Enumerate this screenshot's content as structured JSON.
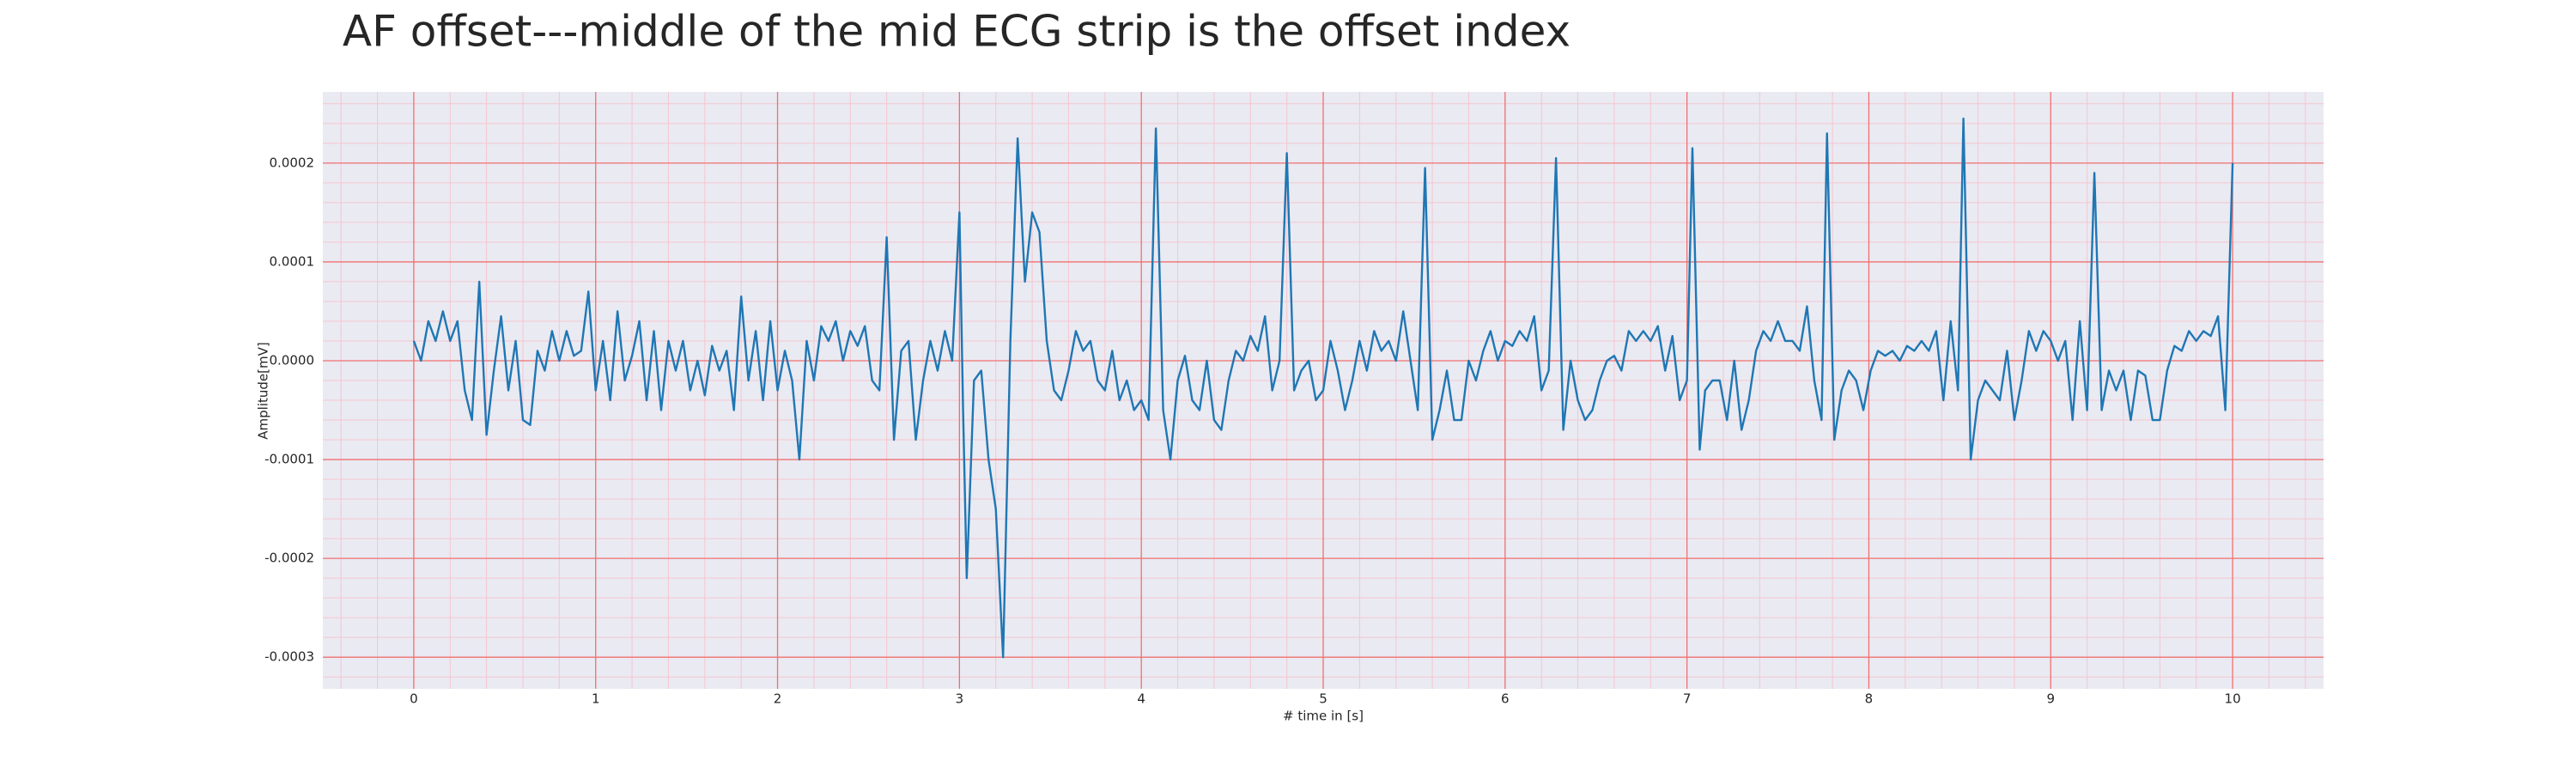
{
  "chart_data": {
    "type": "line",
    "title": "AF offset---middle of the mid ECG strip is the offset index",
    "xlabel": "# time in [s]",
    "ylabel": "Amplitude[mV]",
    "color": "#1f77b4",
    "background": "#eaeaf2",
    "grid": true,
    "grid_color": "#f07070",
    "minor_grid": true,
    "minor_grid_color": "#f5c6d0",
    "minor_grid_divisions": 5,
    "xlim": [
      -0.5,
      10.5
    ],
    "ylim": [
      -0.000332,
      0.000272
    ],
    "xticks": [
      0,
      1,
      2,
      3,
      4,
      5,
      6,
      7,
      8,
      9,
      10
    ],
    "yticks": [
      {
        "value": -0.0003,
        "label": "-0.0003"
      },
      {
        "value": -0.0002,
        "label": "-0.0002"
      },
      {
        "value": -0.0001,
        "label": "-0.0001"
      },
      {
        "value": 0,
        "label": "0.0000"
      },
      {
        "value": 0.0001,
        "label": "0.0001"
      },
      {
        "value": 0.0002,
        "label": "0.0002"
      }
    ],
    "x": [
      0.0,
      0.04,
      0.08,
      0.12,
      0.16,
      0.2,
      0.24,
      0.28,
      0.32,
      0.36,
      0.4,
      0.44,
      0.48,
      0.52,
      0.56,
      0.6,
      0.64,
      0.68,
      0.72,
      0.76,
      0.8,
      0.84,
      0.88,
      0.92,
      0.96,
      1.0,
      1.04,
      1.08,
      1.12,
      1.16,
      1.2,
      1.24,
      1.28,
      1.32,
      1.36,
      1.4,
      1.44,
      1.48,
      1.52,
      1.56,
      1.6,
      1.64,
      1.68,
      1.72,
      1.76,
      1.8,
      1.84,
      1.88,
      1.92,
      1.96,
      2.0,
      2.04,
      2.08,
      2.12,
      2.16,
      2.2,
      2.24,
      2.28,
      2.32,
      2.36,
      2.4,
      2.44,
      2.48,
      2.52,
      2.56,
      2.6,
      2.64,
      2.68,
      2.72,
      2.76,
      2.8,
      2.84,
      2.88,
      2.92,
      2.96,
      3.0,
      3.02,
      3.04,
      3.08,
      3.12,
      3.16,
      3.2,
      3.24,
      3.28,
      3.32,
      3.36,
      3.4,
      3.44,
      3.48,
      3.52,
      3.56,
      3.6,
      3.64,
      3.68,
      3.72,
      3.76,
      3.8,
      3.84,
      3.88,
      3.92,
      3.96,
      4.0,
      4.04,
      4.08,
      4.12,
      4.16,
      4.2,
      4.24,
      4.28,
      4.32,
      4.36,
      4.4,
      4.44,
      4.48,
      4.52,
      4.56,
      4.6,
      4.64,
      4.68,
      4.72,
      4.76,
      4.8,
      4.84,
      4.88,
      4.92,
      4.96,
      5.0,
      5.04,
      5.08,
      5.12,
      5.16,
      5.2,
      5.24,
      5.28,
      5.32,
      5.36,
      5.4,
      5.44,
      5.48,
      5.52,
      5.56,
      5.6,
      5.64,
      5.68,
      5.72,
      5.76,
      5.8,
      5.84,
      5.88,
      5.92,
      5.96,
      6.0,
      6.04,
      6.08,
      6.12,
      6.16,
      6.2,
      6.24,
      6.28,
      6.32,
      6.36,
      6.4,
      6.44,
      6.48,
      6.52,
      6.56,
      6.6,
      6.64,
      6.68,
      6.72,
      6.76,
      6.8,
      6.84,
      6.88,
      6.92,
      6.96,
      7.0,
      7.03,
      7.07,
      7.1,
      7.14,
      7.18,
      7.22,
      7.26,
      7.3,
      7.34,
      7.38,
      7.42,
      7.46,
      7.5,
      7.54,
      7.58,
      7.62,
      7.66,
      7.7,
      7.74,
      7.77,
      7.81,
      7.85,
      7.89,
      7.93,
      7.97,
      8.01,
      8.05,
      8.09,
      8.13,
      8.17,
      8.21,
      8.25,
      8.29,
      8.33,
      8.37,
      8.41,
      8.45,
      8.49,
      8.52,
      8.56,
      8.6,
      8.64,
      8.68,
      8.72,
      8.76,
      8.8,
      8.84,
      8.88,
      8.92,
      8.96,
      9.0,
      9.04,
      9.08,
      9.12,
      9.16,
      9.2,
      9.24,
      9.28,
      9.32,
      9.36,
      9.4,
      9.44,
      9.48,
      9.52,
      9.56,
      9.6,
      9.64,
      9.68,
      9.72,
      9.76,
      9.8,
      9.84,
      9.88,
      9.92,
      9.96,
      10.0
    ],
    "values": [
      2e-05,
      0,
      4e-05,
      2e-05,
      5e-05,
      2e-05,
      4e-05,
      -3e-05,
      -6e-05,
      8e-05,
      -7.5e-05,
      -1e-05,
      4.5e-05,
      -3e-05,
      2e-05,
      -6e-05,
      -6.5e-05,
      1e-05,
      -1e-05,
      3e-05,
      0,
      3e-05,
      5e-06,
      1e-05,
      7e-05,
      -3e-05,
      2e-05,
      -4e-05,
      5e-05,
      -2e-05,
      5e-06,
      4e-05,
      -4e-05,
      3e-05,
      -5e-05,
      2e-05,
      -1e-05,
      2e-05,
      -3e-05,
      0,
      -3.5e-05,
      1.5e-05,
      -1e-05,
      1e-05,
      -5e-05,
      6.5e-05,
      -2e-05,
      3e-05,
      -4e-05,
      4e-05,
      -3e-05,
      1e-05,
      -2e-05,
      -0.0001,
      2e-05,
      -2e-05,
      3.5e-05,
      2e-05,
      4e-05,
      0,
      3e-05,
      1.5e-05,
      3.5e-05,
      -2e-05,
      -3e-05,
      0.000125,
      -8e-05,
      1e-05,
      2e-05,
      -8e-05,
      -2e-05,
      2e-05,
      -1e-05,
      3e-05,
      0,
      0.00015,
      -5e-05,
      -0.00022,
      -2e-05,
      -1e-05,
      -0.0001,
      -0.00015,
      -0.0003,
      2e-05,
      0.000225,
      8e-05,
      0.00015,
      0.00013,
      2e-05,
      -3e-05,
      -4e-05,
      -1e-05,
      3e-05,
      1e-05,
      2e-05,
      -2e-05,
      -3e-05,
      1e-05,
      -4e-05,
      -2e-05,
      -5e-05,
      -4e-05,
      -6e-05,
      0.000235,
      -5e-05,
      -0.0001,
      -2e-05,
      5e-06,
      -4e-05,
      -5e-05,
      0,
      -6e-05,
      -7e-05,
      -2e-05,
      1e-05,
      0,
      2.5e-05,
      1e-05,
      4.5e-05,
      -3e-05,
      0,
      0.00021,
      -3e-05,
      -1e-05,
      0,
      -4e-05,
      -3e-05,
      2e-05,
      -1e-05,
      -5e-05,
      -2e-05,
      2e-05,
      -1e-05,
      3e-05,
      1e-05,
      2e-05,
      0,
      5e-05,
      0,
      -5e-05,
      0.000195,
      -8e-05,
      -5e-05,
      -1e-05,
      -6e-05,
      -6e-05,
      0,
      -2e-05,
      1e-05,
      3e-05,
      0,
      2e-05,
      1.5e-05,
      3e-05,
      2e-05,
      4.5e-05,
      -3e-05,
      -1e-05,
      0.000205,
      -7e-05,
      0,
      -4e-05,
      -6e-05,
      -5e-05,
      -2e-05,
      0,
      5e-06,
      -1e-05,
      3e-05,
      2e-05,
      3e-05,
      2e-05,
      3.5e-05,
      -1e-05,
      2.5e-05,
      -4e-05,
      -2e-05,
      0.000215,
      -9e-05,
      -3e-05,
      -2e-05,
      -2e-05,
      -6e-05,
      0,
      -7e-05,
      -4e-05,
      1e-05,
      3e-05,
      2e-05,
      4e-05,
      2e-05,
      2e-05,
      1e-05,
      5.5e-05,
      -2e-05,
      -6e-05,
      0.00023,
      -8e-05,
      -3e-05,
      -1e-05,
      -2e-05,
      -5e-05,
      -1e-05,
      1e-05,
      5e-06,
      1e-05,
      0,
      1.5e-05,
      1e-05,
      2e-05,
      1e-05,
      3e-05,
      -4e-05,
      4e-05,
      -3e-05,
      0.000245,
      -0.0001,
      -4e-05,
      -2e-05,
      -3e-05,
      -4e-05,
      1e-05,
      -6e-05,
      -2e-05,
      3e-05,
      1e-05,
      3e-05,
      2e-05,
      0,
      2e-05,
      -6e-05,
      4e-05,
      -5e-05,
      0.00019,
      -5e-05,
      -1e-05,
      -3e-05,
      -1e-05,
      -6e-05,
      -1e-05,
      -1.5e-05,
      -6e-05,
      -6e-05,
      -1e-05,
      1.5e-05,
      1e-05,
      3e-05,
      2e-05,
      3e-05,
      2.5e-05,
      4.5e-05,
      -5e-05,
      0.0002
    ]
  }
}
